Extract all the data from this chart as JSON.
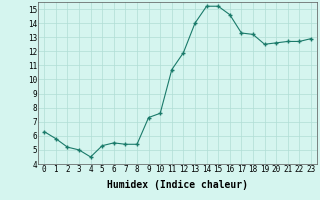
{
  "x": [
    0,
    1,
    2,
    3,
    4,
    5,
    6,
    7,
    8,
    9,
    10,
    11,
    12,
    13,
    14,
    15,
    16,
    17,
    18,
    19,
    20,
    21,
    22,
    23
  ],
  "y": [
    6.3,
    5.8,
    5.2,
    5.0,
    4.5,
    5.3,
    5.5,
    5.4,
    5.4,
    7.3,
    7.6,
    10.7,
    11.9,
    14.0,
    15.2,
    15.2,
    14.6,
    13.3,
    13.2,
    12.5,
    12.6,
    12.7,
    12.7,
    12.9
  ],
  "line_color": "#1a7a6a",
  "marker_color": "#1a7a6a",
  "bg_color": "#d5f5ef",
  "grid_color": "#b0ddd5",
  "xlabel": "Humidex (Indice chaleur)",
  "ylim": [
    4,
    15.5
  ],
  "xlim": [
    -0.5,
    23.5
  ],
  "yticks": [
    4,
    5,
    6,
    7,
    8,
    9,
    10,
    11,
    12,
    13,
    14,
    15
  ],
  "xticks": [
    0,
    1,
    2,
    3,
    4,
    5,
    6,
    7,
    8,
    9,
    10,
    11,
    12,
    13,
    14,
    15,
    16,
    17,
    18,
    19,
    20,
    21,
    22,
    23
  ],
  "xlabel_fontsize": 7,
  "tick_fontsize": 5.5
}
